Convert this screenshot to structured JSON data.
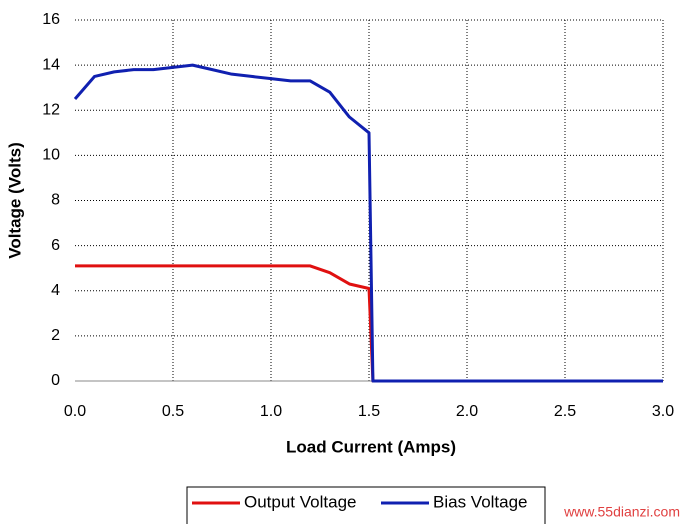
{
  "chart_data": {
    "type": "line",
    "x_label": "Load Current (Amps)",
    "y_label": "Voltage (Volts)",
    "x": [
      0,
      0.1,
      0.2,
      0.3,
      0.4,
      0.5,
      0.6,
      0.7,
      0.8,
      0.9,
      1.0,
      1.1,
      1.2,
      1.3,
      1.4,
      1.5,
      1.52,
      3.0
    ],
    "series": [
      {
        "name": "Output Voltage",
        "color": "#e01010",
        "values": [
          5.1,
          5.1,
          5.1,
          5.1,
          5.1,
          5.1,
          5.1,
          5.1,
          5.1,
          5.1,
          5.1,
          5.1,
          5.1,
          4.8,
          4.3,
          4.1,
          0,
          0
        ]
      },
      {
        "name": "Bias Voltage",
        "color": "#1020b0",
        "values": [
          12.5,
          13.5,
          13.7,
          13.8,
          13.8,
          13.9,
          14.0,
          13.8,
          13.6,
          13.5,
          13.4,
          13.3,
          13.3,
          12.8,
          11.7,
          11.0,
          0,
          0
        ]
      }
    ],
    "xlim": [
      0,
      3
    ],
    "ylim": [
      0,
      16
    ],
    "xticks": [
      {
        "value": 0,
        "label": "0.0"
      },
      {
        "value": 0.5,
        "label": "0.5"
      },
      {
        "value": 1,
        "label": "1.0"
      },
      {
        "value": 1.5,
        "label": "1.5"
      },
      {
        "value": 2,
        "label": "2.0"
      },
      {
        "value": 2.5,
        "label": "2.5"
      },
      {
        "value": 3,
        "label": "3.0"
      }
    ],
    "yticks": [
      0,
      2,
      4,
      6,
      8,
      10,
      12,
      14,
      16
    ],
    "grid": true,
    "legend": "bottom",
    "watermark": "www.55dianzi.com"
  }
}
